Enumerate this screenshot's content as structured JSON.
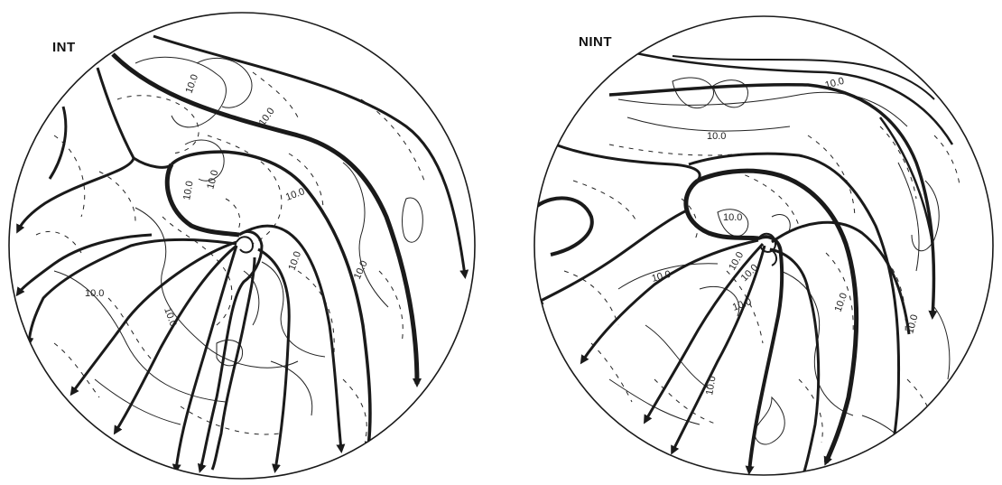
{
  "panels": [
    {
      "id": "int",
      "label": "INT",
      "contour_labels": [
        "10.0",
        "10.0",
        "10.0",
        "10.0",
        "10.0",
        "10.0",
        "10.0",
        "10.0",
        "10.0"
      ]
    },
    {
      "id": "nint",
      "label": "NINT",
      "contour_labels": [
        "10.0",
        "10.0",
        "10.0",
        "10.0",
        "10.0",
        "10.0",
        "10.0",
        "10.0",
        "10.0",
        "10.0"
      ]
    }
  ],
  "colors": {
    "ink": "#1a1a1a",
    "background": "#ffffff"
  }
}
